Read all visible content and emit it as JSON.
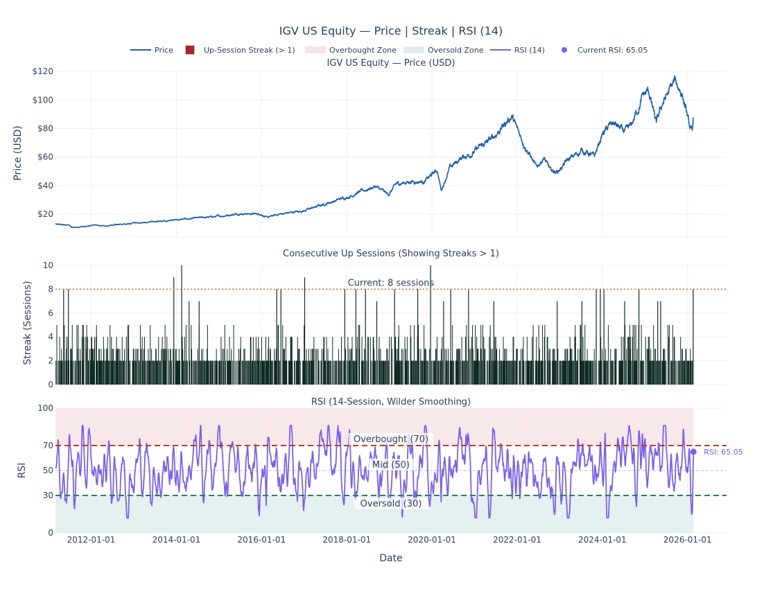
{
  "chart_data": {
    "type": "multi-panel",
    "title": "IGV US Equity — Price | Streak | RSI (14)",
    "xlabel": "Date",
    "x_range": [
      "2011-03-01",
      "2026-12-01"
    ],
    "x_ticks": [
      "2012-01-01",
      "2014-01-01",
      "2016-01-01",
      "2018-01-01",
      "2020-01-01",
      "2022-01-01",
      "2024-01-01",
      "2026-01-01"
    ],
    "legend": [
      {
        "label": "Price",
        "kind": "line",
        "color": "#1f5fa8"
      },
      {
        "label": "Up-Session Streak (> 1)",
        "kind": "square",
        "color": "#b22222"
      },
      {
        "label": "Overbought Zone",
        "kind": "band",
        "color": "#f7e4e4"
      },
      {
        "label": "Oversold Zone",
        "kind": "band",
        "color": "#e1eded"
      },
      {
        "label": "RSI (14)",
        "kind": "line",
        "color": "#7b61e8"
      },
      {
        "label": "Current RSI: 65.05",
        "kind": "dot",
        "color": "#7b61e8"
      }
    ],
    "panels": [
      {
        "id": "price",
        "type": "line",
        "subtitle": "IGV US Equity — Price (USD)",
        "ylabel": "Price (USD)",
        "ylim": [
          4,
          122
        ],
        "yticks": [
          20,
          40,
          60,
          80,
          100,
          120
        ],
        "ytick_labels": [
          "$20",
          "$40",
          "$60",
          "$80",
          "$100",
          "$120"
        ],
        "color": "#1f5fa8",
        "anchors": [
          [
            "2011-03-01",
            13
          ],
          [
            "2011-06-01",
            12.5
          ],
          [
            "2011-08-15",
            10.5
          ],
          [
            "2012-01-01",
            12
          ],
          [
            "2012-06-01",
            12
          ],
          [
            "2013-01-01",
            13.5
          ],
          [
            "2014-01-01",
            16
          ],
          [
            "2014-06-01",
            17
          ],
          [
            "2015-01-01",
            18.5
          ],
          [
            "2015-07-01",
            20.5
          ],
          [
            "2016-01-01",
            20
          ],
          [
            "2016-02-15",
            17.5
          ],
          [
            "2016-06-01",
            20
          ],
          [
            "2017-01-01",
            22.5
          ],
          [
            "2017-06-01",
            26.5
          ],
          [
            "2018-01-01",
            32
          ],
          [
            "2018-09-01",
            39.5
          ],
          [
            "2018-12-24",
            33.5
          ],
          [
            "2019-03-01",
            41
          ],
          [
            "2019-07-01",
            43
          ],
          [
            "2019-11-01",
            43
          ],
          [
            "2020-02-15",
            51
          ],
          [
            "2020-03-20",
            37
          ],
          [
            "2020-06-01",
            52
          ],
          [
            "2020-09-01",
            59
          ],
          [
            "2021-01-01",
            64
          ],
          [
            "2021-06-01",
            73
          ],
          [
            "2021-11-15",
            89
          ],
          [
            "2022-01-01",
            79
          ],
          [
            "2022-05-01",
            60
          ],
          [
            "2022-06-15",
            52
          ],
          [
            "2022-08-15",
            60
          ],
          [
            "2022-10-15",
            50
          ],
          [
            "2022-12-15",
            50
          ],
          [
            "2023-03-01",
            57
          ],
          [
            "2023-07-15",
            65
          ],
          [
            "2023-10-25",
            60
          ],
          [
            "2024-01-01",
            76
          ],
          [
            "2024-04-01",
            84
          ],
          [
            "2024-07-15",
            77
          ],
          [
            "2024-09-01",
            81
          ],
          [
            "2024-12-15",
            103
          ],
          [
            "2025-02-01",
            106
          ],
          [
            "2025-04-08",
            83
          ],
          [
            "2025-06-01",
            98
          ],
          [
            "2025-09-15",
            113
          ],
          [
            "2025-11-15",
            105
          ],
          [
            "2026-01-15",
            82
          ],
          [
            "2026-02-10",
            76
          ],
          [
            "2026-02-20",
            88
          ]
        ],
        "end_date": "2026-02-20"
      },
      {
        "id": "streak",
        "type": "bar",
        "subtitle": "Consecutive Up Sessions (Showing Streaks > 1)",
        "ylabel": "Streak (Sessions)",
        "ylim": [
          0,
          10
        ],
        "yticks": [
          0,
          2,
          4,
          6,
          8,
          10
        ],
        "ytick_labels": [
          "0",
          "2",
          "4",
          "6",
          "8",
          "10"
        ],
        "bar_color": "#0f2a24",
        "current_streak": 8,
        "current_label": "Current: 8 sessions",
        "ref_line_color": "#e07b2a",
        "highlight_streaks": [
          [
            "2011-05-10",
            8
          ],
          [
            "2011-06-20",
            8
          ],
          [
            "2013-12-10",
            9
          ],
          [
            "2014-02-15",
            10
          ],
          [
            "2014-04-20",
            7
          ],
          [
            "2014-07-15",
            7
          ],
          [
            "2016-05-10",
            8
          ],
          [
            "2016-06-15",
            8
          ],
          [
            "2017-01-05",
            9
          ],
          [
            "2017-12-15",
            8
          ],
          [
            "2018-03-20",
            8
          ],
          [
            "2018-06-10",
            8
          ],
          [
            "2018-09-15",
            7
          ],
          [
            "2019-02-15",
            8
          ],
          [
            "2019-09-01",
            8
          ],
          [
            "2019-12-20",
            10
          ],
          [
            "2020-04-10",
            7
          ],
          [
            "2020-06-10",
            8
          ],
          [
            "2020-11-10",
            8
          ],
          [
            "2021-06-15",
            7
          ],
          [
            "2022-12-10",
            7
          ],
          [
            "2023-07-10",
            7
          ],
          [
            "2023-11-10",
            8
          ],
          [
            "2023-12-15",
            8
          ],
          [
            "2024-01-15",
            8
          ],
          [
            "2024-07-10",
            7
          ],
          [
            "2024-11-10",
            8
          ],
          [
            "2025-04-20",
            7
          ],
          [
            "2025-05-15",
            7
          ],
          [
            "2026-02-18",
            8
          ]
        ]
      },
      {
        "id": "rsi",
        "type": "line",
        "subtitle": "RSI (14-Session, Wilder Smoothing)",
        "ylabel": "RSI",
        "ylim": [
          0,
          100
        ],
        "yticks": [
          0,
          30,
          50,
          70,
          100
        ],
        "ytick_labels": [
          "0",
          "30",
          "50",
          "70",
          "100"
        ],
        "color": "#7b61e8",
        "overbought": 70,
        "oversold": 30,
        "mid": 50,
        "overbought_label": "Overbought (70)",
        "mid_label": "Mid (50)",
        "oversold_label": "Oversold (30)",
        "current_rsi": 65.05,
        "current_date": "2026-02-20",
        "current_label": "RSI: 65.05",
        "extremes": [
          [
            "2011-08-10",
            18
          ],
          [
            "2013-08-20",
            28
          ],
          [
            "2016-02-10",
            22
          ],
          [
            "2017-11-05",
            84
          ],
          [
            "2018-01-25",
            84
          ],
          [
            "2018-12-24",
            26
          ],
          [
            "2020-03-20",
            25
          ],
          [
            "2021-11-20",
            25
          ],
          [
            "2022-01-25",
            25
          ],
          [
            "2024-01-25",
            84
          ],
          [
            "2024-12-10",
            82
          ],
          [
            "2026-02-05",
            15
          ]
        ]
      }
    ]
  }
}
